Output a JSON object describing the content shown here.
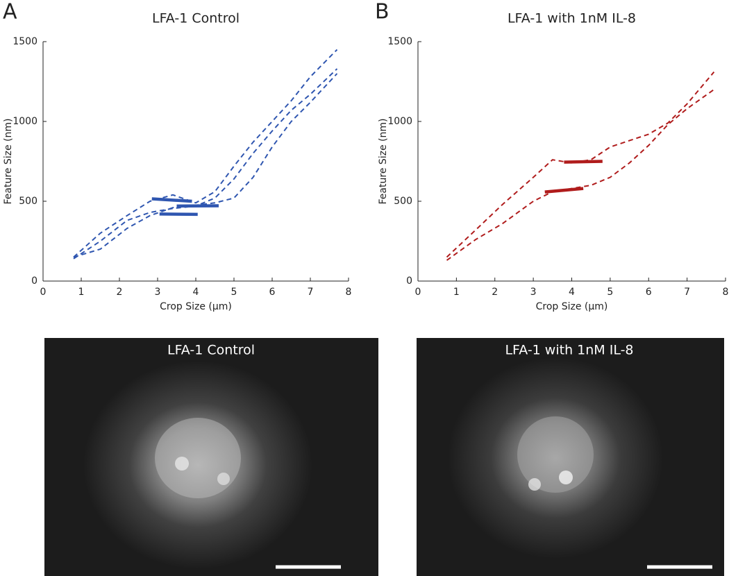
{
  "panel_labels": [
    "A",
    "B"
  ],
  "chart_data": [
    {
      "type": "line",
      "title": "LFA-1 Control",
      "x_label": "Crop Size (μm)",
      "y_label": "Feature Size (nm)",
      "x": [
        0.8,
        1.5,
        2.2,
        2.8,
        3.4,
        4,
        4.5,
        5,
        5.5,
        6,
        6.5,
        7,
        7.7
      ],
      "line_style": "dashed",
      "series": [
        {
          "color": "#2f56b0",
          "values": [
            150,
            300,
            410,
            500,
            540,
            490,
            560,
            720,
            870,
            1000,
            1130,
            1280,
            1450
          ]
        },
        {
          "color": "#2f56b0",
          "values": [
            140,
            250,
            380,
            430,
            455,
            470,
            520,
            640,
            800,
            940,
            1070,
            1170,
            1330
          ]
        },
        {
          "color": "#2f56b0",
          "values": [
            150,
            200,
            330,
            410,
            460,
            475,
            490,
            520,
            650,
            840,
            1000,
            1120,
            1300
          ]
        }
      ],
      "fits": [
        {
          "color": "#2f56b0",
          "x": [
            2.85,
            3.9
          ],
          "values": [
            515,
            500
          ]
        },
        {
          "color": "#2f56b0",
          "x": [
            3.5,
            4.6
          ],
          "values": [
            470,
            472
          ]
        },
        {
          "color": "#2f56b0",
          "x": [
            3.05,
            4.05
          ],
          "values": [
            420,
            418
          ]
        }
      ],
      "xlim": [
        0,
        8
      ],
      "ylim": [
        0,
        1500
      ],
      "xticks": [
        0,
        1,
        2,
        3,
        4,
        5,
        6,
        7,
        8
      ],
      "yticks": [
        0,
        500,
        1000,
        1500
      ]
    },
    {
      "type": "line",
      "title": "LFA-1 with 1nM IL-8",
      "x_label": "Crop Size (μm)",
      "y_label": "Feature Size (nm)",
      "x": [
        0.75,
        1.5,
        2.2,
        3,
        3.5,
        4,
        4.5,
        5,
        5.5,
        6,
        6.5,
        7,
        7.7
      ],
      "line_style": "dashed",
      "series": [
        {
          "color": "#b01c1c",
          "values": [
            150,
            320,
            480,
            650,
            760,
            740,
            760,
            840,
            880,
            920,
            990,
            1110,
            1310
          ]
        },
        {
          "color": "#b01c1c",
          "values": [
            130,
            260,
            360,
            500,
            560,
            580,
            600,
            650,
            740,
            850,
            980,
            1080,
            1200
          ]
        }
      ],
      "fits": [
        {
          "color": "#b01c1c",
          "x": [
            3.8,
            4.8
          ],
          "values": [
            745,
            750
          ]
        },
        {
          "color": "#b01c1c",
          "x": [
            3.3,
            4.3
          ],
          "values": [
            558,
            580
          ]
        }
      ],
      "xlim": [
        0,
        8
      ],
      "ylim": [
        0,
        1500
      ],
      "xticks": [
        0,
        1,
        2,
        3,
        4,
        5,
        6,
        7,
        8
      ],
      "yticks": [
        0,
        500,
        1000,
        1500
      ]
    }
  ],
  "images": [
    {
      "title": "LFA-1 Control"
    },
    {
      "title": "LFA-1 with 1nM IL-8"
    }
  ]
}
